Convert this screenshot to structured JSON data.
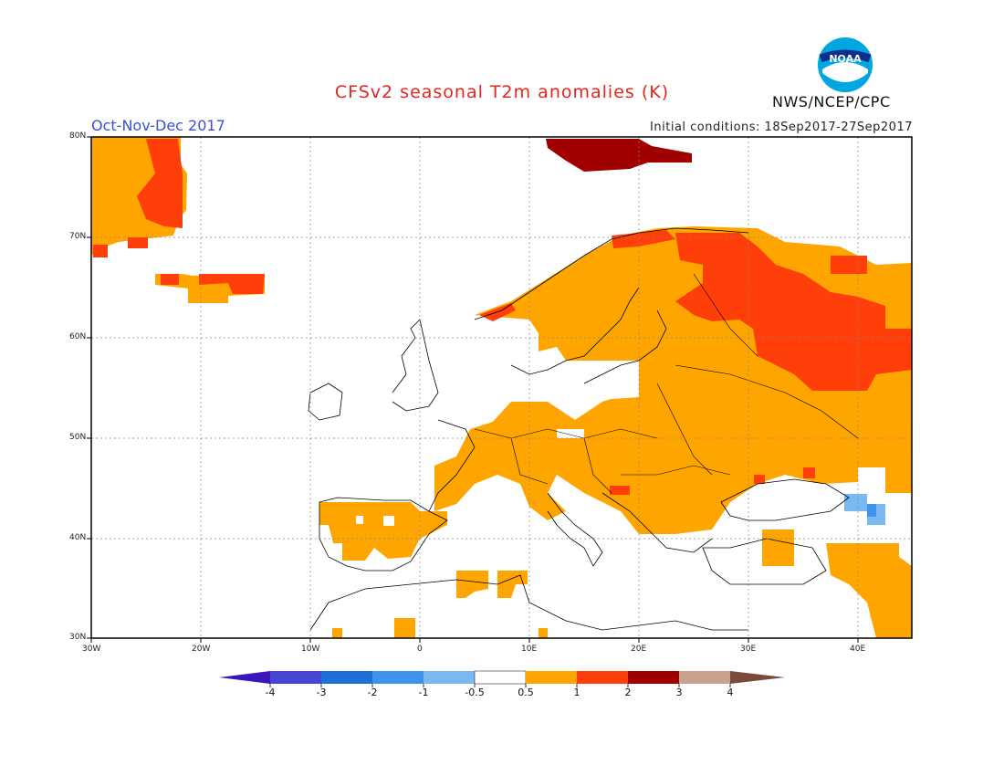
{
  "header": {
    "title": "CFSv2 seasonal T2m anomalies (K)",
    "season": "Oct-Nov-Dec 2017",
    "initial_conditions": "Initial conditions: 18Sep2017-27Sep2017",
    "agency": "NWS/NCEP/CPC",
    "logo_text": "NOAA"
  },
  "map": {
    "lon_range": [
      -30,
      45
    ],
    "lat_range": [
      30,
      80
    ],
    "lat_ticks": [
      "80N",
      "70N",
      "60N",
      "50N",
      "40N",
      "30N"
    ],
    "lon_ticks": [
      "30W",
      "20W",
      "10W",
      "0",
      "10E",
      "20E",
      "30E",
      "40E"
    ],
    "region": "Europe"
  },
  "colorbar": {
    "labels": [
      "-4",
      "-3",
      "-2",
      "-1",
      "-0.5",
      "0.5",
      "1",
      "2",
      "3",
      "4"
    ],
    "colors": [
      "#3a16b8",
      "#4545d4",
      "#1f6fd8",
      "#3c95ea",
      "#7ab8f2",
      "#ffffff",
      "#ffa500",
      "#ff3f0a",
      "#a00000",
      "#c9a08c",
      "#7a4a3a"
    ]
  },
  "anomaly_colors": {
    "warm_05_1": "#ffa500",
    "warm_1_2": "#ff3f0a",
    "warm_2_3": "#a00000",
    "cool_1_05": "#7ab8f2",
    "cool_2_1": "#3c95ea"
  }
}
